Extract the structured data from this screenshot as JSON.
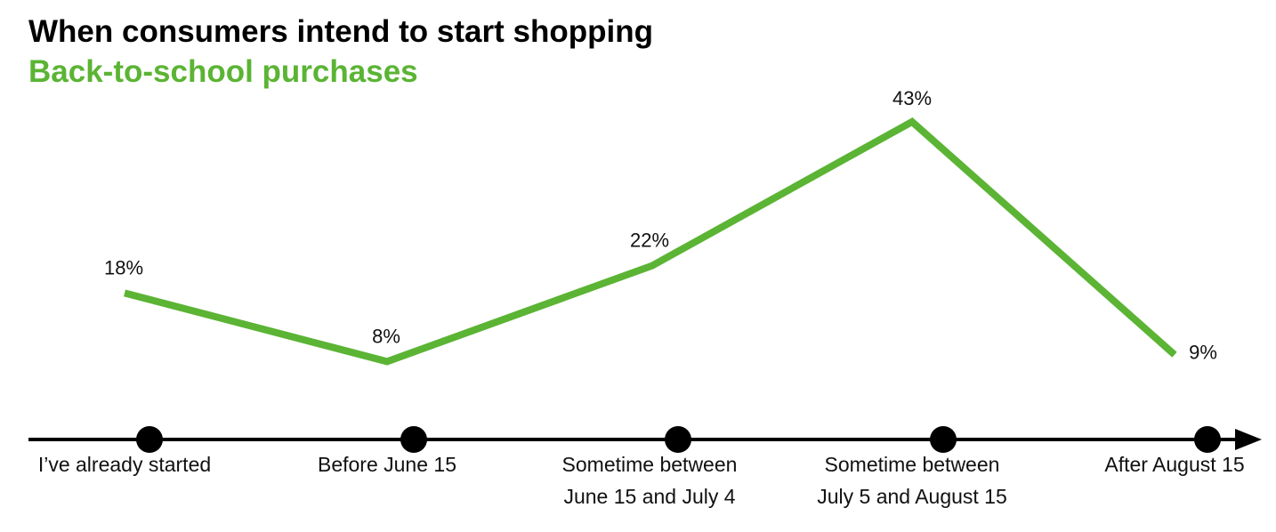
{
  "chart_data": {
    "type": "line",
    "title": "When consumers intend to start shopping",
    "subtitle": "Back-to-school purchases",
    "categories": [
      [
        "I’ve already started"
      ],
      [
        "Before June 15"
      ],
      [
        "Sometime between",
        "June 15 and July 4"
      ],
      [
        "Sometime between",
        "July 5 and August 15"
      ],
      [
        "After August 15"
      ]
    ],
    "series": [
      {
        "values": [
          18,
          8,
          22,
          43,
          9
        ],
        "labels": [
          "18%",
          "8%",
          "22%",
          "43%",
          "9%"
        ]
      }
    ],
    "line_color": "#5bb434",
    "axis_color": "#000000",
    "ylim": [
      0,
      50
    ],
    "grid": false,
    "legend": "none"
  }
}
